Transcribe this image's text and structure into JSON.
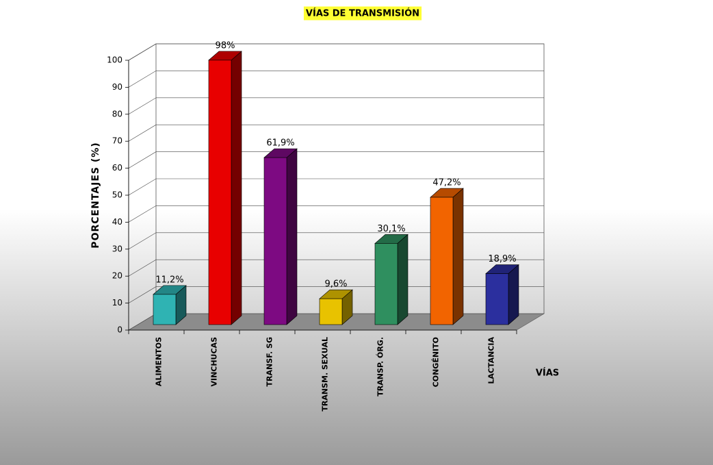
{
  "chart_data": {
    "type": "bar",
    "title": "VÍAS DE TRANSMISIÓN",
    "y_label": "PORCENTAJES (%)",
    "x_label": "VÍAS",
    "categories": [
      "ALIMENTOS",
      "VINCHUCAS",
      "TRANSF. SG",
      "TRANSM. SEXUAL",
      "TRANSP. ÓRG.",
      "CONGÉNITO",
      "LACTANCIA"
    ],
    "values": [
      11.2,
      98,
      61.9,
      9.6,
      30.1,
      47.2,
      18.9
    ],
    "value_labels": [
      "11,2%",
      "98%",
      "61,9%",
      "9,6%",
      "30,1%",
      "47,2%",
      "18,9%"
    ],
    "colors": [
      "#2fb3b3",
      "#e80000",
      "#7d0a82",
      "#e8c200",
      "#2f8f5f",
      "#f26400",
      "#2b2f9e"
    ],
    "ylim": [
      0,
      100
    ],
    "yticks": [
      0,
      10,
      20,
      30,
      40,
      50,
      60,
      70,
      80,
      90,
      100
    ],
    "grid": true
  }
}
